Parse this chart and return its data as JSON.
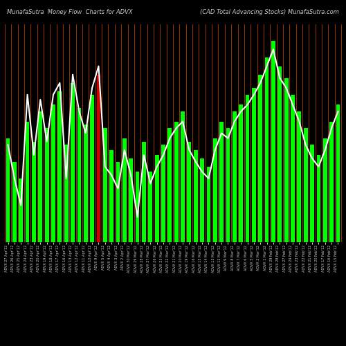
{
  "title_left": "MunafaSutra  Money Flow  Charts for ADVX",
  "title_right": "(CAD Total Advancing Stocks) MunafaSutra.com",
  "background_color": "#000000",
  "bar_color_default": "#00ff00",
  "bar_color_red": "#cc0000",
  "line_color": "#ffffff",
  "divider_color": "#8b3300",
  "title_color": "#cccccc",
  "label_color": "#cccccc",
  "bar_values": [
    62,
    48,
    38,
    72,
    60,
    78,
    68,
    82,
    90,
    58,
    95,
    80,
    70,
    88,
    100,
    68,
    55,
    48,
    62,
    50,
    42,
    60,
    42,
    52,
    58,
    68,
    72,
    78,
    60,
    55,
    50,
    45,
    62,
    72,
    68,
    78,
    82,
    88,
    92,
    100,
    110,
    120,
    105,
    98,
    88,
    78,
    68,
    58,
    52,
    62,
    72,
    82
  ],
  "line_values": [
    58,
    38,
    22,
    88,
    52,
    85,
    60,
    88,
    95,
    38,
    100,
    78,
    65,
    92,
    105,
    45,
    40,
    32,
    55,
    40,
    15,
    52,
    35,
    45,
    52,
    62,
    68,
    72,
    55,
    48,
    42,
    38,
    55,
    65,
    62,
    72,
    78,
    82,
    88,
    95,
    105,
    115,
    98,
    92,
    82,
    72,
    58,
    50,
    45,
    55,
    68,
    78
  ],
  "red_bar_index": 14,
  "x_labels": [
    "ADVX 27 Apr'12",
    "ADVX 26 Apr'12",
    "ADVX 25 Apr'12",
    "ADVX 24 Apr'12",
    "ADVX 23 Apr'12",
    "ADVX 20 Apr'12",
    "ADVX 19 Apr'12",
    "ADVX 18 Apr'12",
    "ADVX 17 Apr'12",
    "ADVX 16 Apr'12",
    "ADVX 13 Apr'12",
    "ADVX 12 Apr'12",
    "ADVX 11 Apr'12",
    "ADVX 10 Apr'12",
    "ADVX 9 Apr'12",
    "ADVX 5 Apr'12",
    "ADVX 4 Apr'12",
    "ADVX 3 Apr'12",
    "ADVX 2 Apr'12",
    "ADVX 30 Mar'12",
    "ADVX 29 Mar'12",
    "ADVX 28 Mar'12",
    "ADVX 27 Mar'12",
    "ADVX 26 Mar'12",
    "ADVX 23 Mar'12",
    "ADVX 22 Mar'12",
    "ADVX 21 Mar'12",
    "ADVX 20 Mar'12",
    "ADVX 19 Mar'12",
    "ADVX 16 Mar'12",
    "ADVX 15 Mar'12",
    "ADVX 14 Mar'12",
    "ADVX 13 Mar'12",
    "ADVX 12 Mar'12",
    "ADVX 9 Mar'12",
    "ADVX 8 Mar'12",
    "ADVX 7 Mar'12",
    "ADVX 6 Mar'12",
    "ADVX 5 Mar'12",
    "ADVX 2 Mar'12",
    "ADVX 1 Mar'12",
    "ADVX 29 Feb'12",
    "ADVX 28 Feb'12",
    "ADVX 27 Feb'12",
    "ADVX 24 Feb'12",
    "ADVX 23 Feb'12",
    "ADVX 22 Feb'12",
    "ADVX 21 Feb'12",
    "ADVX 20 Feb'12",
    "ADVX 17 Feb'12",
    "ADVX 16 Feb'12",
    "ADVX 15 Feb'12"
  ],
  "ylim": [
    0,
    130
  ],
  "figsize": [
    5.0,
    5.0
  ],
  "dpi": 100
}
